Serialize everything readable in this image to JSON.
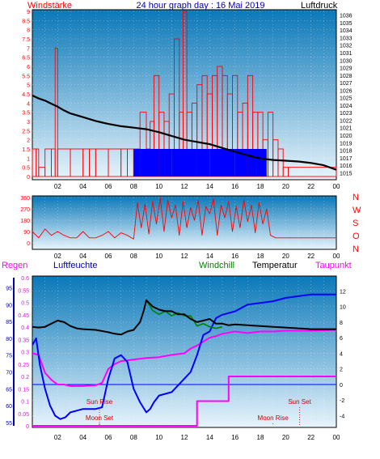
{
  "title": "24 hour graph day : 16 Mai 2019",
  "colors": {
    "wind": "#ff0000",
    "gust_fill": "#0000ff",
    "pressure": "#000000",
    "humidity": "#0000ff",
    "windchill": "#008000",
    "temperature": "#000000",
    "dewpoint": "#ff00ff",
    "rain": "#ff00ff",
    "zero_line": "#0000ff",
    "axis_label_blue": "#0000aa",
    "astro_red": "#cc0000",
    "plot_top": "#0a78b8",
    "plot_bottom": "#e8f4fc"
  },
  "chart_data": [
    {
      "type": "bar",
      "panel": "wind-pressure",
      "title": "24 hour graph day : 16 Mai 2019",
      "left_label": "Windstärke",
      "right_label": "Luftdruck",
      "x_ticks": [
        "02",
        "04",
        "06",
        "08",
        "10",
        "12",
        "14",
        "16",
        "18",
        "20",
        "22",
        "00"
      ],
      "left_ylim": [
        0,
        9
      ],
      "left_ticks": [
        "0",
        "0.5",
        "1",
        "1.5",
        "2",
        "2.5",
        "3",
        "3.5",
        "4",
        "4.5",
        "5",
        "5.5",
        "6",
        "6.5",
        "7",
        "7.5",
        "8",
        "8.5",
        "9"
      ],
      "right_ylim": [
        1014.5,
        1036.5
      ],
      "right_ticks": [
        "1015",
        "1016",
        "1017",
        "1018",
        "1019",
        "1020",
        "1021",
        "1022",
        "1023",
        "1024",
        "1025",
        "1026",
        "1027",
        "1028",
        "1029",
        "1030",
        "1031",
        "1032",
        "1033",
        "1034",
        "1035",
        "1036"
      ],
      "series": [
        {
          "name": "Luftdruck",
          "axis": "right",
          "x": [
            0.0,
            0.5,
            1.0,
            1.5,
            2.0,
            2.5,
            3.0,
            4.0,
            5.0,
            6.0,
            7.0,
            8.0,
            9.0,
            10.0,
            11.0,
            12.0,
            13.0,
            14.0,
            15.0,
            16.0,
            17.0,
            18.0,
            19.0,
            20.0,
            21.0,
            22.0,
            23.0,
            24.0
          ],
          "y": [
            1025.3,
            1024.9,
            1024.6,
            1024.2,
            1023.8,
            1023.3,
            1022.9,
            1022.4,
            1021.9,
            1021.5,
            1021.2,
            1021.0,
            1020.8,
            1020.4,
            1019.9,
            1019.4,
            1019.1,
            1018.8,
            1018.3,
            1017.8,
            1017.3,
            1016.9,
            1016.7,
            1016.6,
            1016.5,
            1016.3,
            1016.0,
            1015.4
          ]
        },
        {
          "name": "Windstärke",
          "axis": "left",
          "x": [
            0.0,
            0.3,
            0.5,
            1.0,
            1.5,
            1.8,
            2.0,
            3.0,
            4.0,
            4.5,
            5.0,
            6.0,
            7.0,
            7.5,
            8.0,
            8.5,
            9.0,
            9.3,
            9.6,
            10.0,
            10.4,
            10.8,
            11.2,
            11.6,
            11.9,
            12.2,
            12.6,
            13.0,
            13.4,
            13.8,
            14.2,
            14.6,
            15.0,
            15.4,
            15.8,
            16.2,
            16.6,
            17.0,
            17.4,
            17.8,
            18.2,
            18.6,
            19.0,
            19.4,
            19.8,
            20.2,
            24.0
          ],
          "y": [
            1.5,
            1.5,
            0.5,
            1.5,
            1.5,
            7.0,
            1.5,
            1.5,
            1.5,
            1.5,
            1.5,
            1.5,
            1.5,
            1.5,
            1.5,
            3.5,
            1.5,
            3.0,
            5.5,
            3.5,
            3.0,
            4.5,
            7.5,
            3.5,
            9.0,
            3.5,
            4.0,
            5.0,
            5.5,
            4.5,
            5.5,
            6.0,
            5.5,
            4.5,
            5.5,
            3.5,
            4.0,
            5.5,
            3.5,
            3.5,
            2.0,
            3.5,
            2.0,
            1.5,
            0.5,
            0.5,
            0.5
          ]
        },
        {
          "name": "Böen",
          "axis": "left",
          "x": [
            8.0,
            8.5,
            9.0,
            10.0,
            11.0,
            12.0,
            13.0,
            14.0,
            15.0,
            16.0,
            17.0,
            18.0,
            18.5
          ],
          "y": [
            1.5,
            1.5,
            1.5,
            1.5,
            1.5,
            1.5,
            1.5,
            1.5,
            1.5,
            1.5,
            1.5,
            1.5,
            1.5
          ]
        }
      ]
    },
    {
      "type": "line",
      "panel": "wind-direction",
      "right_labels": [
        "N",
        "W",
        "S",
        "O",
        "N"
      ],
      "ylim": [
        0,
        360
      ],
      "y_ticks": [
        "0",
        "90",
        "180",
        "270",
        "360"
      ],
      "x_ticks": [
        "02",
        "04",
        "06",
        "08",
        "10",
        "12",
        "14",
        "16",
        "18",
        "20",
        "22",
        "00"
      ],
      "series": [
        {
          "name": "Windrichtung",
          "x": [
            0.0,
            0.5,
            1.0,
            1.5,
            2.0,
            2.5,
            3.0,
            3.5,
            4.0,
            4.5,
            5.0,
            5.5,
            6.0,
            6.5,
            7.0,
            7.5,
            8.0,
            8.3,
            8.6,
            8.9,
            9.2,
            9.5,
            9.8,
            10.1,
            10.4,
            10.7,
            11.0,
            11.3,
            11.6,
            11.9,
            12.2,
            12.5,
            12.8,
            13.1,
            13.4,
            13.7,
            14.0,
            14.3,
            14.6,
            14.9,
            15.2,
            15.5,
            15.8,
            16.1,
            16.4,
            16.7,
            17.0,
            17.3,
            17.6,
            17.9,
            18.2,
            18.5,
            18.8,
            19.2,
            20.0,
            22.0,
            24.0
          ],
          "y": [
            90,
            40,
            110,
            60,
            90,
            60,
            40,
            40,
            90,
            40,
            40,
            60,
            90,
            40,
            80,
            60,
            30,
            320,
            120,
            310,
            70,
            330,
            150,
            360,
            90,
            340,
            200,
            300,
            60,
            330,
            120,
            280,
            180,
            340,
            60,
            290,
            230,
            350,
            60,
            300,
            200,
            330,
            90,
            290,
            120,
            340,
            170,
            300,
            80,
            320,
            150,
            270,
            60,
            40,
            40,
            40,
            40
          ]
        }
      ]
    },
    {
      "type": "line",
      "panel": "temperature-humidity-rain",
      "labels": {
        "rain": "Regen",
        "humidity": "Luftfeuchte",
        "windchill": "Windchill",
        "temperature": "Temperatur",
        "dewpoint": "Taupunkt"
      },
      "humidity_ticks": [
        "55",
        "60",
        "65",
        "70",
        "75",
        "80",
        "85",
        "90",
        "95"
      ],
      "humidity_ylim": [
        54,
        98
      ],
      "rain_ticks": [
        "0",
        "0.05",
        "0.1",
        "0.15",
        "0.2",
        "0.25",
        "0.3",
        "0.35",
        "0.4",
        "0.45",
        "0.5",
        "0.55",
        "0.6"
      ],
      "rain_ylim": [
        0,
        0.6
      ],
      "temperature_ticks": [
        "-4",
        "-2",
        "0",
        "2",
        "4",
        "6",
        "8",
        "10",
        "12"
      ],
      "temperature_ylim": [
        -5.3,
        13.7
      ],
      "x_ticks": [
        "02",
        "04",
        "06",
        "08",
        "10",
        "12",
        "14",
        "16",
        "18",
        "20",
        "22",
        "00"
      ],
      "annotations": [
        {
          "text": "Sun Rise",
          "x": 5.3
        },
        {
          "text": "Moon Set",
          "x": 5.3
        },
        {
          "text": "Sun Set",
          "x": 21.1
        },
        {
          "text": "Moon Rise",
          "x": 19.0
        }
      ],
      "series": [
        {
          "name": "Temperatur",
          "axis": "temperature",
          "x": [
            0,
            0.5,
            1,
            1.5,
            2,
            2.5,
            3,
            3.5,
            4,
            5,
            6,
            6.5,
            7,
            7.5,
            8,
            8.5,
            8.8,
            9.0,
            9.5,
            10,
            10.5,
            11,
            11.5,
            12,
            12.5,
            13,
            13.5,
            14,
            14.5,
            15,
            15.5,
            16,
            17,
            18,
            19,
            20,
            21,
            22,
            23,
            24
          ],
          "y": [
            7.4,
            7.3,
            7.4,
            7.8,
            8.2,
            8.0,
            7.5,
            7.2,
            7.1,
            7.0,
            6.7,
            6.5,
            6.4,
            6.8,
            7.0,
            8.0,
            9.5,
            10.8,
            10.0,
            9.6,
            9.4,
            9.4,
            9.0,
            9.0,
            8.4,
            8.0,
            8.2,
            8.4,
            7.8,
            7.8,
            7.6,
            7.7,
            7.6,
            7.5,
            7.4,
            7.3,
            7.2,
            7.1,
            7.1,
            7.1
          ]
        },
        {
          "name": "Windchill",
          "axis": "temperature",
          "x": [
            9.0,
            9.5,
            10,
            10.5,
            11,
            11.5,
            12,
            12.5,
            13,
            13.5,
            14,
            14.5,
            15
          ],
          "y": [
            10.8,
            9.5,
            9.0,
            9.4,
            8.8,
            9.2,
            8.8,
            8.8,
            7.5,
            7.8,
            7.4,
            7.2,
            7.4
          ]
        },
        {
          "name": "Taupunkt",
          "axis": "temperature",
          "x": [
            0,
            0.5,
            1,
            1.5,
            2,
            2.5,
            3,
            4,
            5,
            5.5,
            6,
            6.5,
            7,
            8,
            9,
            10,
            11,
            12,
            12.5,
            13,
            13.5,
            14,
            14.5,
            15,
            16,
            17,
            18,
            19,
            20,
            22,
            24
          ],
          "y": [
            4.0,
            3.8,
            1.5,
            0.6,
            0.0,
            0.0,
            -0.2,
            -0.2,
            -0.1,
            0.2,
            2.0,
            2.6,
            3.0,
            3.2,
            3.4,
            3.5,
            3.8,
            4.0,
            4.6,
            5.0,
            5.5,
            6.0,
            6.2,
            6.5,
            6.8,
            6.6,
            6.8,
            6.8,
            6.9,
            6.9,
            7.0
          ]
        },
        {
          "name": "Luftfeuchte",
          "axis": "humidity",
          "x": [
            0,
            0.3,
            0.6,
            1.0,
            1.4,
            1.8,
            2.2,
            2.6,
            3.0,
            3.5,
            4.0,
            4.5,
            5.0,
            5.5,
            6.0,
            6.5,
            7.0,
            7.5,
            8.0,
            8.5,
            9.0,
            9.3,
            9.6,
            10.0,
            10.5,
            11.0,
            11.5,
            12.0,
            12.5,
            13.0,
            13.5,
            14.0,
            14.5,
            15.0,
            15.5,
            16.0,
            17.0,
            18.0,
            19.0,
            20.0,
            21.0,
            22.0,
            23.0,
            24.0
          ],
          "y": [
            78.0,
            80.0,
            72.0,
            65.0,
            60.0,
            57.0,
            56.0,
            56.5,
            58.0,
            58.5,
            59.0,
            59.0,
            59.0,
            59.5,
            68.0,
            74.0,
            75.0,
            73.0,
            65.0,
            61.0,
            58.0,
            59.0,
            61.0,
            63.0,
            63.5,
            64.0,
            66.0,
            68.0,
            70.0,
            75.0,
            81.0,
            82.0,
            86.0,
            87.0,
            87.5,
            88.0,
            90.0,
            90.5,
            91.0,
            92.0,
            92.5,
            93.0,
            93.0,
            93.0
          ]
        },
        {
          "name": "Regen",
          "axis": "rain",
          "x": [
            0,
            13.0,
            13.0,
            15.5,
            15.5,
            24.0
          ],
          "y": [
            0,
            0,
            0.1,
            0.1,
            0.2,
            0.2
          ]
        }
      ]
    }
  ]
}
